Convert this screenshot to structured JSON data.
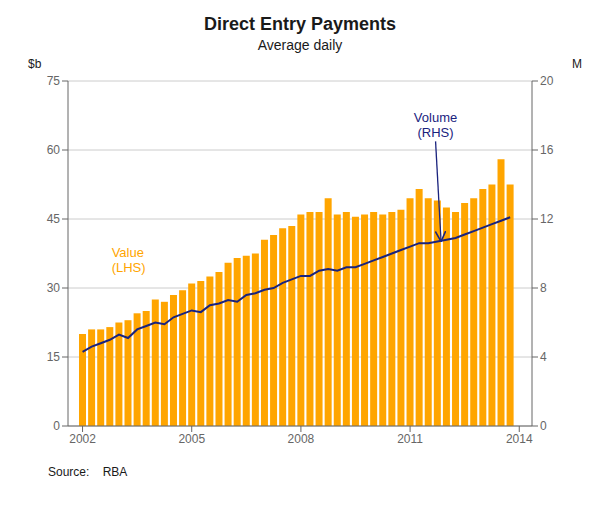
{
  "chart_data": {
    "type": "bar",
    "title": "Direct Entry Payments",
    "subtitle": "Average daily",
    "ylabel": "$b",
    "y2label": "M",
    "source": "Source:    RBA",
    "x": [
      2002.0,
      2002.25,
      2002.5,
      2002.75,
      2003.0,
      2003.25,
      2003.5,
      2003.75,
      2004.0,
      2004.25,
      2004.5,
      2004.75,
      2005.0,
      2005.25,
      2005.5,
      2005.75,
      2006.0,
      2006.25,
      2006.5,
      2006.75,
      2007.0,
      2007.25,
      2007.5,
      2007.75,
      2008.0,
      2008.25,
      2008.5,
      2008.75,
      2009.0,
      2009.25,
      2009.5,
      2009.75,
      2010.0,
      2010.25,
      2010.5,
      2010.75,
      2011.0,
      2011.25,
      2011.5,
      2011.75,
      2012.0,
      2012.25,
      2012.5,
      2012.75,
      2013.0,
      2013.25,
      2013.5,
      2013.75
    ],
    "series": [
      {
        "type": "bar",
        "color": "#FFA500",
        "values": [
          20.0,
          21.0,
          21.0,
          21.5,
          22.5,
          23.0,
          24.5,
          25.0,
          27.5,
          27.0,
          28.5,
          29.5,
          31.0,
          31.5,
          32.5,
          33.5,
          35.5,
          36.5,
          37.0,
          37.5,
          40.5,
          41.5,
          43.0,
          43.5,
          46.0,
          46.5,
          46.5,
          49.5,
          46.0,
          46.5,
          45.5,
          46.0,
          46.5,
          46.0,
          46.5,
          47.0,
          49.5,
          51.5,
          49.5,
          49.0,
          47.5,
          46.5,
          48.5,
          49.5,
          51.5,
          52.5,
          58.0,
          52.5
        ]
      },
      {
        "type": "line",
        "axis": "y2",
        "color": "#1A237E",
        "values": [
          4.3,
          4.6,
          4.8,
          5.0,
          5.3,
          5.1,
          5.6,
          5.8,
          6.0,
          5.9,
          6.3,
          6.5,
          6.7,
          6.6,
          7.0,
          7.1,
          7.3,
          7.2,
          7.6,
          7.7,
          7.9,
          8.0,
          8.3,
          8.5,
          8.7,
          8.7,
          9.0,
          9.1,
          9.0,
          9.2,
          9.2,
          9.4,
          9.6,
          9.8,
          10.0,
          10.2,
          10.4,
          10.6,
          10.6,
          10.7,
          10.8,
          10.9,
          11.1,
          11.3,
          11.5,
          11.7,
          11.9,
          12.1
        ]
      }
    ],
    "xlim": [
      2001.6,
      2014.35
    ],
    "xticks": [
      2002,
      2005,
      2008,
      2011,
      2014
    ],
    "ylim": [
      0,
      75
    ],
    "yticks": [
      0,
      15,
      30,
      45,
      60,
      75
    ],
    "y2lim": [
      0,
      20
    ],
    "y2ticks": [
      0,
      4,
      8,
      12,
      16,
      20
    ],
    "grid": true,
    "annotations": [
      {
        "text": "Value\n(LHS)",
        "x": 2002.8,
        "y": 36,
        "color": "#FFA500"
      },
      {
        "text": "Volume\n(RHS)",
        "x": 2011.7,
        "y": 16.5,
        "axis": "y2",
        "arrow_x": 2011.85,
        "arrow_y": 10.75,
        "color": "#1A237E"
      }
    ]
  }
}
